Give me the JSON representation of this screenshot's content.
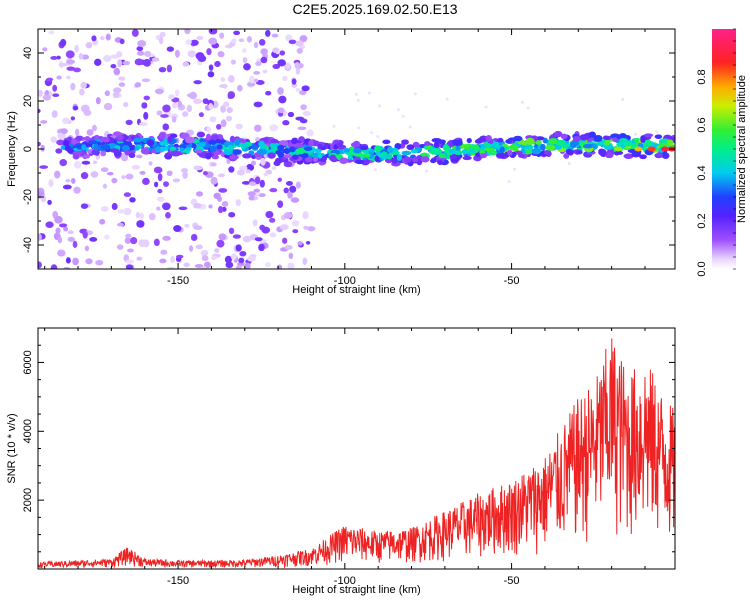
{
  "title": "C2E5.2025.169.02.50.E13",
  "colors": {
    "snr_line": "#ee2222",
    "axis": "#000000",
    "background": "#ffffff"
  },
  "chart_data": [
    {
      "type": "heatmap",
      "xlabel": "Height of straight line (km)",
      "ylabel": "Frequency (Hz)",
      "xlim": [
        -192,
        -1
      ],
      "ylim": [
        -50,
        50
      ],
      "xticks": [
        "-150",
        "-100",
        "-50"
      ],
      "yticks": [
        "40",
        "20",
        "0",
        "-20",
        "-40"
      ],
      "colorbar": {
        "label": "Normalized spectral amplitude",
        "range": [
          0,
          1
        ],
        "ticks": [
          "0.0",
          "0.2",
          "0.4",
          "0.6",
          "0.8"
        ],
        "colormap": "white-purple-blue-cyan-green-yellow-red-magenta"
      },
      "features": {
        "band_center_hz": 0,
        "band_halfwidth_hz": 5,
        "band_peak_amplitude": 0.9,
        "noise_extent_km": [
          -192,
          -110
        ],
        "noise_amplitude": 0.15
      }
    },
    {
      "type": "line",
      "xlabel": "Height of straight line (km)",
      "ylabel": "SNR (10 * v/v)",
      "xlim": [
        -192,
        -1
      ],
      "ylim": [
        0,
        7000
      ],
      "xticks": [
        "-150",
        "-100",
        "-50"
      ],
      "yticks": [
        "6000",
        "4000",
        "2000"
      ],
      "series": [
        {
          "x": [
            -192,
            -180,
            -170,
            -165,
            -160,
            -150,
            -140,
            -130,
            -120,
            -110,
            -100,
            -90,
            -80,
            -70,
            -60,
            -50,
            -40,
            -30,
            -25,
            -20,
            -15,
            -10,
            -5,
            -1
          ],
          "y": [
            200,
            250,
            300,
            650,
            300,
            250,
            250,
            270,
            400,
            600,
            1300,
            1100,
            1200,
            1700,
            2200,
            2600,
            3300,
            5000,
            5500,
            6900,
            5700,
            6200,
            5200,
            4600
          ]
        }
      ]
    }
  ]
}
